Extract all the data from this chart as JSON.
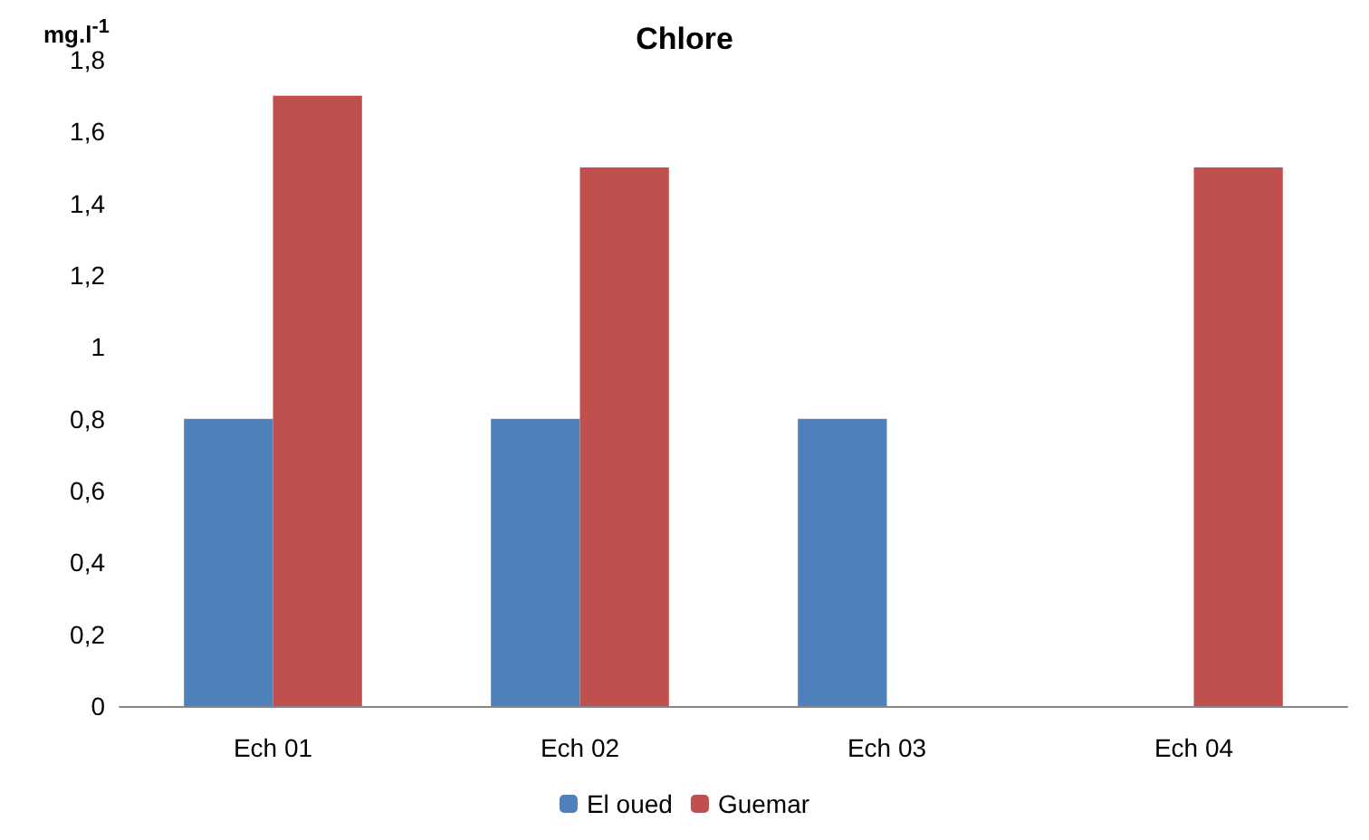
{
  "chart_data": {
    "type": "bar",
    "title": "Chlore",
    "ylabel": "mg.l$^{-1}$",
    "categories": [
      "Ech 01",
      "Ech 02",
      "Ech 03",
      "Ech 04"
    ],
    "series": [
      {
        "name": "El oued",
        "color": "#4f81bd",
        "values": [
          0.8,
          0.8,
          0.8,
          null
        ]
      },
      {
        "name": "Guemar",
        "color": "#c0504d",
        "values": [
          1.7,
          1.5,
          null,
          1.5
        ]
      }
    ],
    "ylim": [
      0,
      1.8
    ],
    "yticks": [
      0,
      {
        "value": 0.2,
        "label": "0,2"
      },
      {
        "value": 0.4,
        "label": "0,4"
      },
      {
        "value": 0.6,
        "label": "0,6"
      },
      {
        "value": 0.8,
        "label": "0,8"
      },
      1,
      {
        "value": 1.2,
        "label": "1,2"
      },
      {
        "value": 1.4,
        "label": "1,4"
      },
      {
        "value": 1.6,
        "label": "1,6"
      },
      {
        "value": 1.8,
        "label": "1,8"
      }
    ],
    "grid": false,
    "legend": "bottom"
  }
}
